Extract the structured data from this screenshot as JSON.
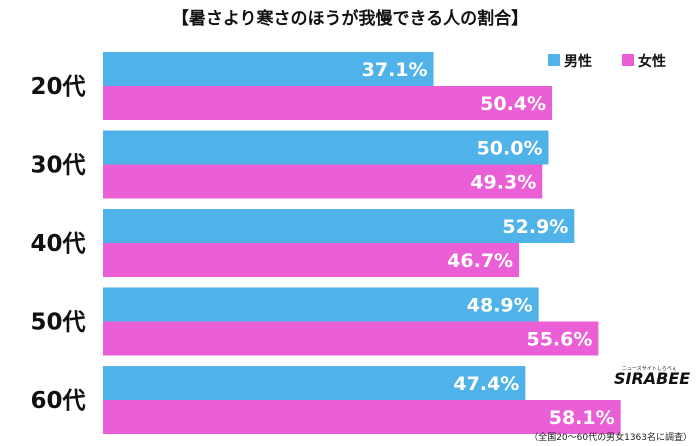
{
  "chart_data": {
    "type": "bar",
    "orientation": "horizontal",
    "title": "【暑さより寒さのほうが我慢できる人の割合】",
    "categories": [
      "20代",
      "30代",
      "40代",
      "50代",
      "60代"
    ],
    "series": [
      {
        "name": "男性",
        "color": "#4fb3ea",
        "values": [
          37.1,
          50.0,
          52.9,
          48.9,
          47.4
        ],
        "labels": [
          "37.1%",
          "50.0%",
          "52.9%",
          "48.9%",
          "47.4%"
        ]
      },
      {
        "name": "女性",
        "color": "#ea5fd6",
        "values": [
          50.4,
          49.3,
          46.7,
          55.6,
          58.1
        ],
        "labels": [
          "50.4%",
          "49.3%",
          "46.7%",
          "55.6%",
          "58.1%"
        ]
      }
    ],
    "xlim": [
      0,
      100
    ],
    "grid": false,
    "legend_position": "top-right",
    "note": "（全国20〜60代の男女1363名に調査）"
  },
  "logo": {
    "main": "SIRABEE",
    "sub": "ニュースサイトしらべぇ"
  }
}
